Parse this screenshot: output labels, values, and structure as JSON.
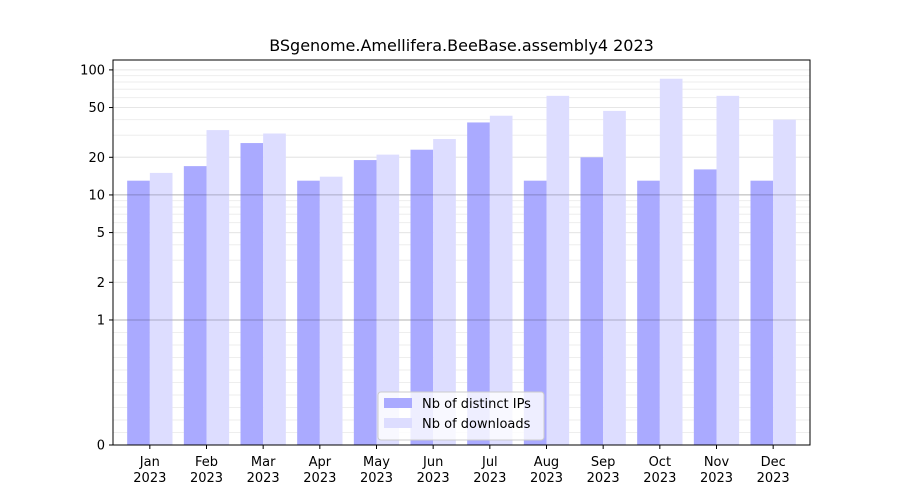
{
  "chart_data": {
    "type": "bar",
    "title": "BSgenome.Amellifera.BeeBase.assembly4 2023",
    "xlabel": "",
    "ylabel": "",
    "yscale": "symlog",
    "ylim": [
      0,
      120
    ],
    "yticks": [
      {
        "value": 0,
        "label": "0"
      },
      {
        "value": 1,
        "label": "1"
      },
      {
        "value": 2,
        "label": "2"
      },
      {
        "value": 5,
        "label": "5"
      },
      {
        "value": 10,
        "label": "10"
      },
      {
        "value": 20,
        "label": "20"
      },
      {
        "value": 50,
        "label": "50"
      },
      {
        "value": 100,
        "label": "100"
      }
    ],
    "categories": [
      {
        "month": "Jan",
        "year": "2023"
      },
      {
        "month": "Feb",
        "year": "2023"
      },
      {
        "month": "Mar",
        "year": "2023"
      },
      {
        "month": "Apr",
        "year": "2023"
      },
      {
        "month": "May",
        "year": "2023"
      },
      {
        "month": "Jun",
        "year": "2023"
      },
      {
        "month": "Jul",
        "year": "2023"
      },
      {
        "month": "Aug",
        "year": "2023"
      },
      {
        "month": "Sep",
        "year": "2023"
      },
      {
        "month": "Oct",
        "year": "2023"
      },
      {
        "month": "Nov",
        "year": "2023"
      },
      {
        "month": "Dec",
        "year": "2023"
      }
    ],
    "series": [
      {
        "name": "Nb of distinct IPs",
        "color": "#aaaaff",
        "values": [
          13,
          17,
          26,
          13,
          19,
          23,
          38,
          13,
          20,
          13,
          16,
          13
        ]
      },
      {
        "name": "Nb of downloads",
        "color": "#ddddff",
        "values": [
          15,
          33,
          31,
          14,
          21,
          28,
          43,
          62,
          47,
          85,
          62,
          40
        ]
      }
    ],
    "reference_lines": [
      1,
      10
    ],
    "grid": true,
    "legend_position": "bottom-center"
  }
}
